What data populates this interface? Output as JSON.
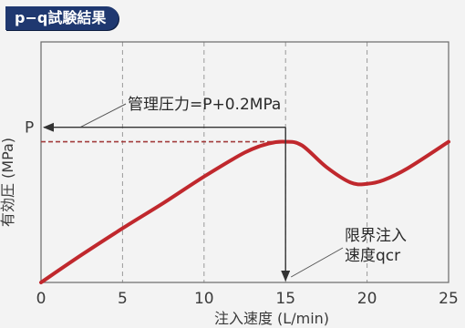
{
  "header": {
    "title": "p−q試験結果"
  },
  "chart_data": {
    "type": "line",
    "title": "p−q試験結果",
    "xlabel": "注入速度 (L/min)",
    "ylabel": "有効圧 (MPa)",
    "xlim": [
      0,
      25
    ],
    "ylim": [
      0,
      1
    ],
    "x_ticks": [
      "0",
      "5",
      "10",
      "15",
      "20",
      "25"
    ],
    "y_tick_labels": [
      "P"
    ],
    "p_level": 0.585,
    "qcr": 15,
    "grid": "vertical dashed",
    "series": [
      {
        "color": "#c0282d",
        "x": [
          0,
          2.5,
          5,
          7.5,
          10,
          12.5,
          14,
          15,
          16,
          17.5,
          19,
          20,
          21,
          22.5,
          25
        ],
        "y": [
          0.0,
          0.115,
          0.225,
          0.33,
          0.44,
          0.54,
          0.578,
          0.585,
          0.57,
          0.48,
          0.415,
          0.41,
          0.425,
          0.475,
          0.585
        ]
      }
    ],
    "annotations": {
      "pressure": "管理圧力=P+0.2MPa",
      "critical_line1": "限界注入",
      "critical_line2": "速度qcr"
    }
  }
}
